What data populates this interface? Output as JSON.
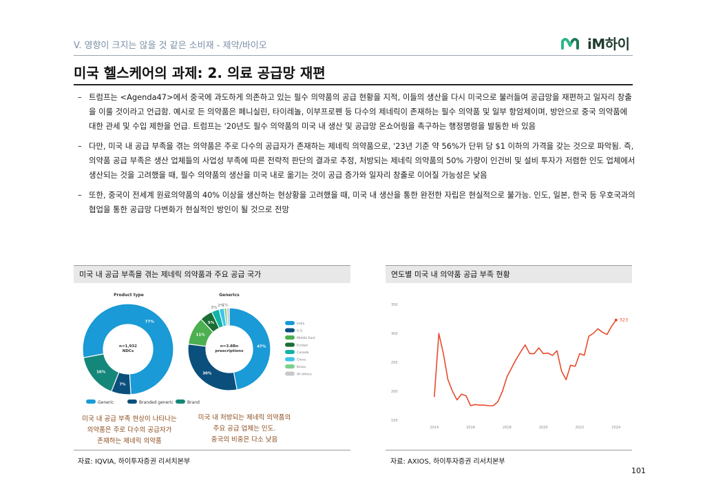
{
  "header": {
    "section": "V. 영향이 크지는 않을 것 같은 소비재 - 제약/바이오",
    "logo_text": "iM하이",
    "title": "미국 헬스케어의 과제: 2. 의료 공급망 재편"
  },
  "bullets": [
    "트럼프는 <Agenda47>에서 중국에 과도하게 의존하고 있는 필수 의약품의 공급 현황을 지적, 이들의 생산을 다시 미국으로 불러들여 공급망을 재편하고 일자리 창출을 이룰 것이라고 언급함. 예시로 든 의약품은 페니실린, 타이레놀, 이부프로펜 등 다수의 제네릭이 존재하는 필수 의약품 및 일부 항암제이며, 방안으로 중국 의약품에 대한 관세 및 수입 제한을 언급. 트럼프는 '20년도 필수 의약품의 미국 내 생산 및 공급망 온쇼어링을 촉구하는 행정명령을 발동한 바 있음",
    "다만, 미국 내 공급 부족을 겪는 의약품은 주로 다수의 공급자가 존재하는 제네릭 의약품으로, '23년 기준 약 56%가 단위 당 $1 이하의 가격을 갖는 것으로 파악됨. 즉, 의약품 공급 부족은 생산 업체들의 사업성 부족에 따른 전략적 판단의 결과로 추정, 처방되는 제네릭 의약품의 50% 가량이 인건비 및 설비 투자가 저렴한 인도 업체에서 생산되는 것을 고려했을 때, 필수 의약품의 생산을 미국 내로 옮기는 것이 공급 증가와 일자리 창출로 이어질 가능성은 낮음",
    "또한, 중국이 전세계 원료의약품의 40% 이상을 생산하는 현상황을 고려했을 때, 미국 내 생산을 통한 완전한 자립은 현실적으로 불가능. 인도, 일본, 한국 등 우호국과의 협업을 통한 공급망 다변화가 현실적인 방인이 될 것으로 전망"
  ],
  "left_panel": {
    "heading": "미국 내 공급 부족을 겪는 제네릭 의약품과 주요 공급 국가",
    "source": "자료: IQVIA, 하이투자증권 리서치본부",
    "note1": [
      "미국 내 공급 부족 현상이 나타나는",
      "의약품은 주로 다수의 공급자가",
      "존재하는 제네릭 의약품"
    ],
    "note2": [
      "미국 내 처방되는 제네릭 의약품의",
      "주요 공급 업체는 인도.",
      "중국의 비중은 다소 낮음"
    ]
  },
  "right_panel": {
    "heading": "연도별 미국 내 의약품 공급 부족 현황",
    "source": "자료: AXIOS, 하이투자증권 리서치본부"
  },
  "page_number": "101",
  "colors": {
    "generic": "#1a9ad6",
    "branded_generic": "#0b4f7c",
    "brand": "#15877a",
    "line": "#e8492a"
  },
  "chart_data": [
    {
      "type": "pie",
      "title": "Product type",
      "center_label": [
        "n=1,932",
        "NDCs"
      ],
      "categories": [
        "Generic",
        "Branded generic",
        "Brand"
      ],
      "values": [
        77,
        7,
        16
      ],
      "value_labels": [
        "77%",
        "7%",
        "16%"
      ],
      "legend_position": "bottom"
    },
    {
      "type": "pie",
      "title": "Generics",
      "center_label": [
        "n=3.8Bn",
        "prescriptions"
      ],
      "categories": [
        "India",
        "U.S.",
        "Middle East",
        "Europe",
        "Canada",
        "China",
        "Korea",
        "All others"
      ],
      "values": [
        47,
        30,
        11,
        5,
        3,
        2,
        1,
        1
      ],
      "value_labels": [
        "47%",
        "30%",
        "11%",
        "5%",
        "3%",
        "2%",
        "1%",
        ""
      ],
      "colors": [
        "#1a9ad6",
        "#0b4f7c",
        "#4caf50",
        "#1b6e35",
        "#12b3a8",
        "#3fc4e8",
        "#7ad18a",
        "#c8c8c8"
      ],
      "legend_position": "right"
    },
    {
      "type": "line",
      "x": [
        2014.0,
        2014.25,
        2014.5,
        2014.75,
        2015.0,
        2015.25,
        2015.5,
        2015.75,
        2016.0,
        2016.25,
        2016.5,
        2016.75,
        2017.0,
        2017.25,
        2017.5,
        2017.75,
        2018.0,
        2018.25,
        2018.5,
        2018.75,
        2019.0,
        2019.25,
        2019.5,
        2019.75,
        2020.0,
        2020.25,
        2020.5,
        2020.75,
        2021.0,
        2021.25,
        2021.5,
        2021.75,
        2022.0,
        2022.25,
        2022.5,
        2022.75,
        2023.0,
        2023.25,
        2023.5,
        2023.75,
        2024.0
      ],
      "y": [
        190,
        300,
        265,
        220,
        200,
        185,
        195,
        192,
        175,
        177,
        176,
        176,
        175,
        175,
        182,
        200,
        225,
        240,
        255,
        268,
        280,
        265,
        265,
        275,
        265,
        266,
        262,
        270,
        235,
        220,
        245,
        243,
        265,
        262,
        295,
        300,
        308,
        302,
        298,
        312,
        323
      ],
      "xticks": [
        "2014",
        "2016",
        "2018",
        "2020",
        "2022",
        "2024"
      ],
      "yticks": [
        "150",
        "200",
        "250",
        "300",
        "350"
      ],
      "ylim": [
        150,
        350
      ],
      "xlim": [
        2012,
        2024.5
      ],
      "end_label": "323",
      "grid": false
    }
  ]
}
